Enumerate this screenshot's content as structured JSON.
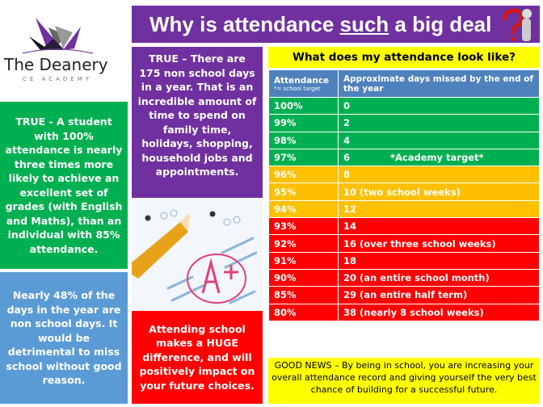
{
  "title": {
    "pre": "Why is attendance ",
    "emph": "such",
    "post": " a big deal"
  },
  "logo": {
    "name": "The Deanery",
    "sub": "CE ACADEMY"
  },
  "facts": {
    "green": "TRUE - A student with 100% attendance is nearly three times more likely to achieve an excellent set of grades (with English and Maths), than an individual with 85% attendance.",
    "blue": "Nearly 48% of the days in the year are non school days. It would be detrimental to miss school without good reason.",
    "purple": "TRUE – There are 175 non school days in a year. That is an incredible amount of time to spend on family time, holidays, shopping, household jobs and appointments.",
    "red": "Attending school makes a HUGE difference, and will positively impact on your future choices."
  },
  "table": {
    "heading": "What does my attendance look like?",
    "col1": "Attendance",
    "col1_note": "*= school target",
    "col2": "Approximate days missed by the end of the year",
    "target_note": "*Academy target*",
    "rows": [
      {
        "att": "100%",
        "days": "0",
        "band": "green"
      },
      {
        "att": "99%",
        "days": "2",
        "band": "green"
      },
      {
        "att": "98%",
        "days": "4",
        "band": "green"
      },
      {
        "att": "97%",
        "days": "6",
        "band": "green"
      },
      {
        "att": "96%",
        "days": "8",
        "band": "amber"
      },
      {
        "att": "95%",
        "days": "10 (two school weeks)",
        "band": "amber"
      },
      {
        "att": "94%",
        "days": "12",
        "band": "amber"
      },
      {
        "att": "93%",
        "days": "14",
        "band": "red"
      },
      {
        "att": "92%",
        "days": "16 (over three school weeks)",
        "band": "red"
      },
      {
        "att": "91%",
        "days": "18",
        "band": "red"
      },
      {
        "att": "90%",
        "days": "20 (an entire school month)",
        "band": "red"
      },
      {
        "att": "85%",
        "days": "29 (an entire half term)",
        "band": "red"
      },
      {
        "att": "80%",
        "days": "38 (nearly 8 school weeks)",
        "band": "red"
      }
    ]
  },
  "news": "GOOD NEWS – By being in school, you are increasing your overall attendance record and giving yourself the very best chance of building for a successful future.",
  "colors": {
    "purple": "#7030a0",
    "green": "#00b050",
    "amber": "#ffc000",
    "red": "#ff0000",
    "blue": "#5b9bd5",
    "yellow": "#ffff00"
  }
}
